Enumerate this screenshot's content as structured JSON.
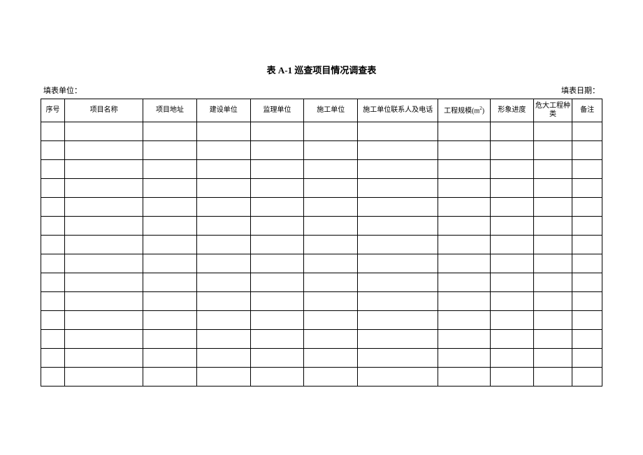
{
  "document": {
    "title": "表 A-1 巡查项目情况调查表",
    "header_left_label": "填表单位：",
    "header_right_label": "填表日期：",
    "row_count": 14,
    "background_color": "#ffffff",
    "border_color": "#000000",
    "text_color": "#000000",
    "title_fontsize": 13,
    "label_fontsize": 11,
    "cell_fontsize": 10
  },
  "table": {
    "columns": [
      {
        "label": "序号",
        "key": "seq",
        "width": 32
      },
      {
        "label": "项目名称",
        "key": "name",
        "width": 105
      },
      {
        "label": "项目地址",
        "key": "addr",
        "width": 72
      },
      {
        "label": "建设单位",
        "key": "build",
        "width": 72
      },
      {
        "label": "监理单位",
        "key": "supervise",
        "width": 72
      },
      {
        "label": "施工单位",
        "key": "construct",
        "width": 72
      },
      {
        "label": "施工单位联系人及电话",
        "key": "contact",
        "width": 108
      },
      {
        "label": "工程规模(m²)",
        "key": "scale",
        "width": 70,
        "has_sup": true,
        "label_base": "工程规模(m",
        "label_sup": "2",
        "label_after": ")"
      },
      {
        "label": "形象进度",
        "key": "progress",
        "width": 58
      },
      {
        "label": "危大工程种类",
        "key": "danger",
        "width": 52
      },
      {
        "label": "备注",
        "key": "note",
        "width": 40
      }
    ],
    "rows": [
      [
        "",
        "",
        "",
        "",
        "",
        "",
        "",
        "",
        "",
        "",
        ""
      ],
      [
        "",
        "",
        "",
        "",
        "",
        "",
        "",
        "",
        "",
        "",
        ""
      ],
      [
        "",
        "",
        "",
        "",
        "",
        "",
        "",
        "",
        "",
        "",
        ""
      ],
      [
        "",
        "",
        "",
        "",
        "",
        "",
        "",
        "",
        "",
        "",
        ""
      ],
      [
        "",
        "",
        "",
        "",
        "",
        "",
        "",
        "",
        "",
        "",
        ""
      ],
      [
        "",
        "",
        "",
        "",
        "",
        "",
        "",
        "",
        "",
        "",
        ""
      ],
      [
        "",
        "",
        "",
        "",
        "",
        "",
        "",
        "",
        "",
        "",
        ""
      ],
      [
        "",
        "",
        "",
        "",
        "",
        "",
        "",
        "",
        "",
        "",
        ""
      ],
      [
        "",
        "",
        "",
        "",
        "",
        "",
        "",
        "",
        "",
        "",
        ""
      ],
      [
        "",
        "",
        "",
        "",
        "",
        "",
        "",
        "",
        "",
        "",
        ""
      ],
      [
        "",
        "",
        "",
        "",
        "",
        "",
        "",
        "",
        "",
        "",
        ""
      ],
      [
        "",
        "",
        "",
        "",
        "",
        "",
        "",
        "",
        "",
        "",
        ""
      ],
      [
        "",
        "",
        "",
        "",
        "",
        "",
        "",
        "",
        "",
        "",
        ""
      ],
      [
        "",
        "",
        "",
        "",
        "",
        "",
        "",
        "",
        "",
        "",
        ""
      ]
    ]
  }
}
